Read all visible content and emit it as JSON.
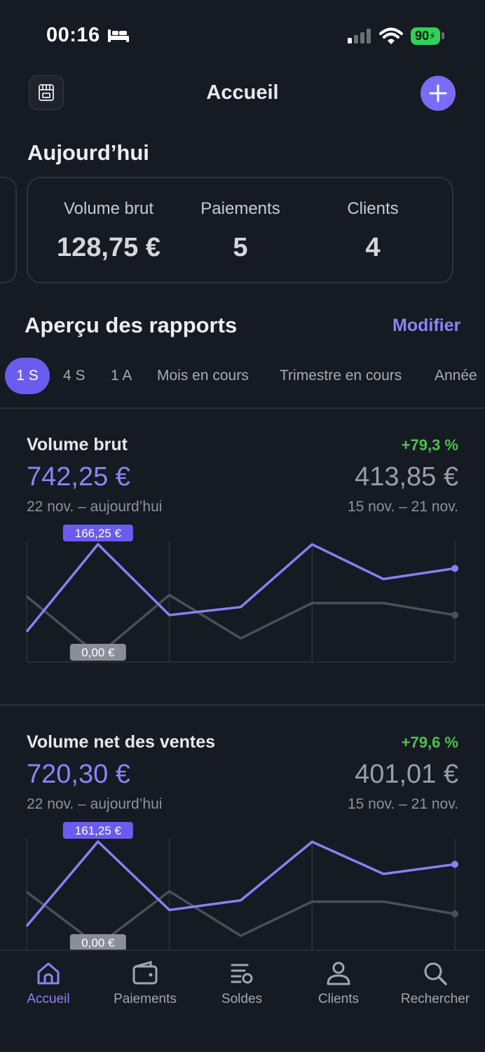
{
  "status_bar": {
    "time": "00:16",
    "battery": "90"
  },
  "header": {
    "title": "Accueil"
  },
  "today": {
    "title": "Aujourd’hui",
    "stats": [
      {
        "label": "Volume brut",
        "value": "128,75 €"
      },
      {
        "label": "Paiements",
        "value": "5"
      },
      {
        "label": "Clients",
        "value": "4"
      }
    ]
  },
  "reports": {
    "title": "Aperçu des rapports",
    "edit_label": "Modifier",
    "tabs": [
      {
        "label": "1 S",
        "active": true
      },
      {
        "label": "4 S",
        "active": false
      },
      {
        "label": "1 A",
        "active": false
      },
      {
        "label": "Mois en cours",
        "active": false
      },
      {
        "label": "Trimestre en cours",
        "active": false
      },
      {
        "label": "Année",
        "active": false
      }
    ]
  },
  "metrics": [
    {
      "title": "Volume brut",
      "change": "+79,3 %",
      "current_value": "742,25 €",
      "previous_value": "413,85 €",
      "current_range": "22 nov. – aujourd’hui",
      "previous_range": "15 nov. – 21 nov.",
      "max_label": "166,25 €",
      "min_label": "0,00 €"
    },
    {
      "title": "Volume net des ventes",
      "change": "+79,6 %",
      "current_value": "720,30 €",
      "previous_value": "401,01 €",
      "current_range": "22 nov. – aujourd’hui",
      "previous_range": "15 nov. – 21 nov.",
      "max_label": "161,25 €",
      "min_label": "0,00 €"
    }
  ],
  "chart_data": [
    {
      "type": "line",
      "x": [
        1,
        2,
        3,
        4,
        5,
        6,
        7
      ],
      "ylim": [
        0,
        166.25
      ],
      "series": [
        {
          "values": [
            35,
            166.25,
            60,
            72,
            166,
            114,
            130
          ],
          "color": "#8b7ff5"
        },
        {
          "values": [
            88,
            0,
            90,
            25,
            78,
            78,
            60
          ],
          "color": "#4a4f5b"
        }
      ]
    },
    {
      "type": "line",
      "x": [
        1,
        2,
        3,
        4,
        5,
        6,
        7
      ],
      "ylim": [
        0,
        161.25
      ],
      "series": [
        {
          "values": [
            30,
            161.25,
            55,
            70,
            161,
            111,
            126
          ],
          "color": "#8b7ff5"
        },
        {
          "values": [
            83,
            0,
            84,
            15,
            68,
            68,
            49
          ],
          "color": "#4a4f5b"
        }
      ]
    }
  ],
  "bottom_nav": [
    {
      "label": "Accueil",
      "icon": "home-icon",
      "active": true
    },
    {
      "label": "Paiements",
      "icon": "wallet-icon",
      "active": false
    },
    {
      "label": "Soldes",
      "icon": "balances-icon",
      "active": false
    },
    {
      "label": "Clients",
      "icon": "person-icon",
      "active": false
    },
    {
      "label": "Rechercher",
      "icon": "search-icon",
      "active": false
    }
  ],
  "colors": {
    "accent": "#7b6cf6",
    "positive": "#4cc24a",
    "background": "#161a23"
  }
}
